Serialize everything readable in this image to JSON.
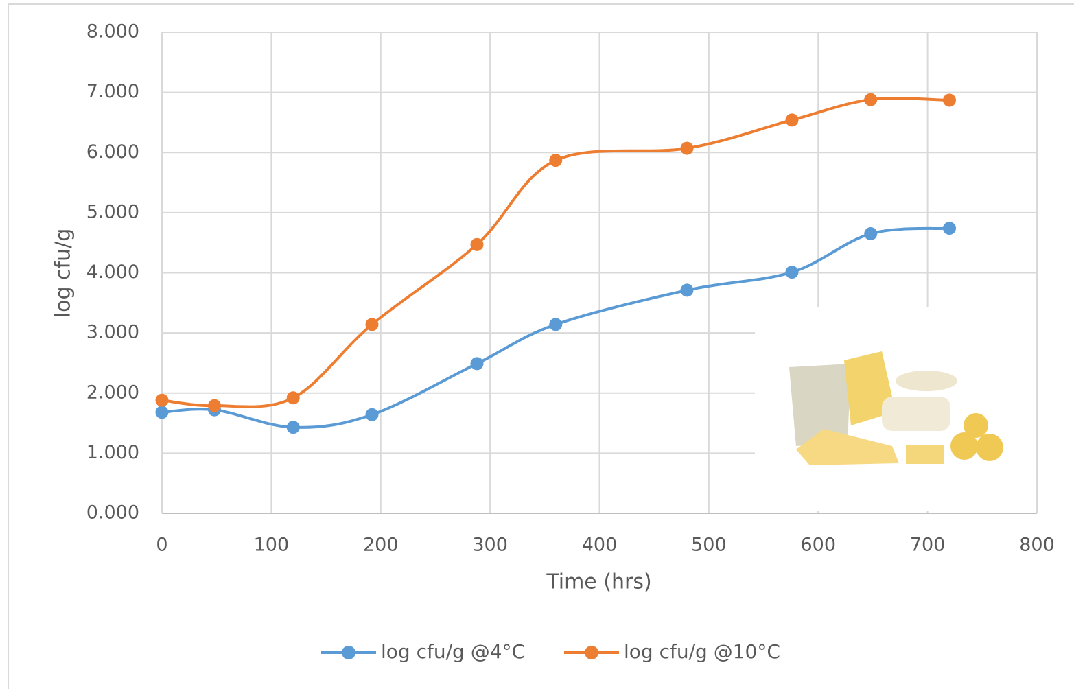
{
  "chart_data": {
    "type": "line",
    "smooth": true,
    "x_label": "Time (hrs)",
    "y_label": "log cfu/g",
    "x": [
      0,
      48,
      120,
      192,
      288,
      360,
      480,
      576,
      648,
      720
    ],
    "series": [
      {
        "name": "log cfu/g @4°C",
        "color": "#5b9bd5",
        "values": [
          1.68,
          1.72,
          1.43,
          1.64,
          2.49,
          3.14,
          3.71,
          4.01,
          4.65,
          4.74
        ]
      },
      {
        "name": "log cfu/g @10°C",
        "color": "#ed7d31",
        "values": [
          1.88,
          1.79,
          1.92,
          3.14,
          4.47,
          5.87,
          6.07,
          6.54,
          6.88,
          6.87
        ]
      }
    ],
    "xlim": [
      0,
      800
    ],
    "xticks": [
      0,
      100,
      200,
      300,
      400,
      500,
      600,
      700,
      800
    ],
    "ylim": [
      0,
      8
    ],
    "yticks": [
      {
        "value": 0,
        "label": "0.000"
      },
      {
        "value": 1,
        "label": "1.000"
      },
      {
        "value": 2,
        "label": "2.000"
      },
      {
        "value": 3,
        "label": "3.000"
      },
      {
        "value": 4,
        "label": "4.000"
      },
      {
        "value": 5,
        "label": "5.000"
      },
      {
        "value": 6,
        "label": "6.000"
      },
      {
        "value": 7,
        "label": "7.000"
      },
      {
        "value": 8,
        "label": "8.000"
      }
    ],
    "grid": true,
    "legend": "bottom"
  }
}
